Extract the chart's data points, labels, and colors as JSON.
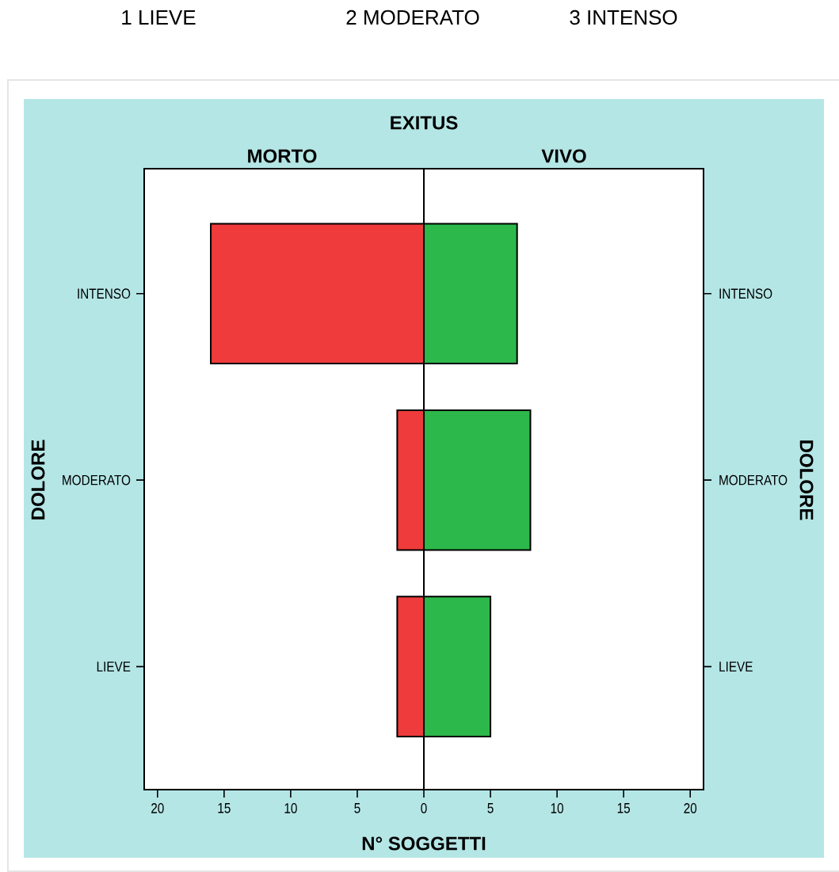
{
  "chart_data": {
    "type": "bar",
    "orientation": "horizontal",
    "title": "EXITUS",
    "xlabel": "N° SOGGETTI",
    "ylabel": "DOLORE",
    "stacked": true,
    "annotations": [
      "1 LIEVE",
      "2 MODERATO",
      "3 INTENSO",
      "DOLORE",
      "MORTO",
      "VIVO"
    ],
    "categories": [
      "INTENSO",
      "MODERATO",
      "LIEVE"
    ],
    "series": [
      {
        "color": "#ef3b3b",
        "values": [
          -16,
          -2,
          -2
        ]
      },
      {
        "color": "#2db84b",
        "values": [
          7,
          8,
          5
        ]
      }
    ],
    "xlim": [
      -21,
      21
    ],
    "xticks": [
      {
        "value": -20,
        "label": "20"
      },
      {
        "value": -15,
        "label": "15"
      },
      {
        "value": -10,
        "label": "10"
      },
      {
        "value": -5,
        "label": "5"
      },
      0,
      5,
      10,
      15,
      20
    ],
    "ref_lines": [
      {
        "axis": "x",
        "value": 0
      }
    ]
  }
}
